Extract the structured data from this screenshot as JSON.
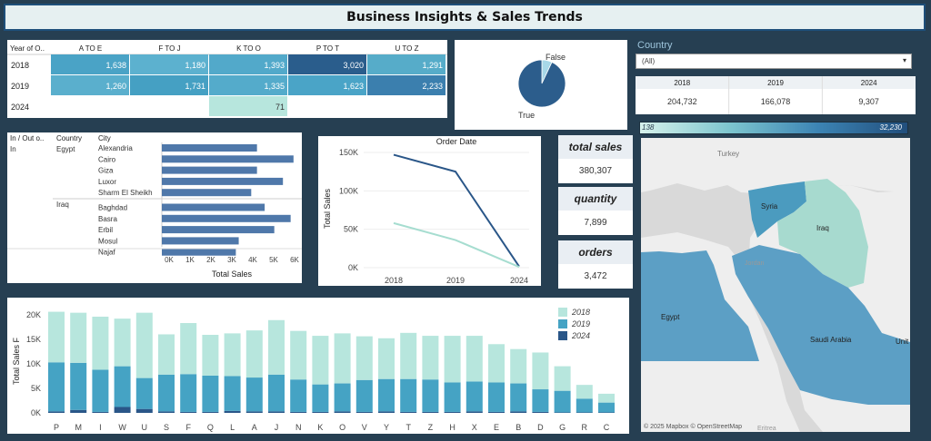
{
  "title": "Business Insights & Sales Trends",
  "heat": {
    "corner": "Year of O..",
    "cols": [
      "A TO E",
      "F TO J",
      "K TO O",
      "P TO T",
      "U TO Z"
    ],
    "rows": [
      {
        "year": "2018",
        "values": [
          "1,638",
          "1,180",
          "1,393",
          "3,020",
          "1,291"
        ],
        "colors": [
          "#4aa3c6",
          "#5cb1cf",
          "#52a9ca",
          "#2a5d8c",
          "#56acc9"
        ]
      },
      {
        "year": "2019",
        "values": [
          "1,260",
          "1,731",
          "1,335",
          "1,623",
          "2,233"
        ],
        "colors": [
          "#5aafcd",
          "#45a0c3",
          "#54abcb",
          "#4aa4c7",
          "#3b7fae"
        ]
      },
      {
        "year": "2024",
        "values": [
          "",
          "",
          "71",
          "",
          ""
        ],
        "colors": [
          "",
          "",
          "#b7e6dd",
          "",
          ""
        ]
      }
    ]
  },
  "pie": {
    "labels": [
      "False",
      "True"
    ],
    "values": [
      0.07,
      0.93
    ],
    "colors": [
      "#a7d8e8",
      "#2c5d8c"
    ]
  },
  "filter": {
    "label": "Country",
    "value": "(All)"
  },
  "year_totals": {
    "years": [
      "2018",
      "2019",
      "2024"
    ],
    "values": [
      "204,732",
      "166,078",
      "9,307"
    ]
  },
  "legend": {
    "min": "138",
    "max": "32,230"
  },
  "bars": {
    "headers": [
      "In / Out o..",
      "Country",
      "City"
    ],
    "group": "In",
    "countries": [
      "Egypt",
      "Iraq"
    ],
    "cities": [
      "Alexandria",
      "Cairo",
      "Giza",
      "Luxor",
      "Sharm El Sheikh",
      "Baghdad",
      "Basra",
      "Erbil",
      "Mosul",
      "Najaf"
    ],
    "values": [
      4950,
      6850,
      4950,
      6300,
      4650,
      5350,
      6700,
      5850,
      4000,
      3850
    ],
    "ticks": [
      "0K",
      "1K",
      "2K",
      "3K",
      "4K",
      "5K",
      "6K"
    ],
    "xlabel": "Total Sales",
    "max": 7000
  },
  "line": {
    "title": "Order Date",
    "ylabel": "Total Sales",
    "x": [
      "2018",
      "2019",
      "2024"
    ],
    "yticks": [
      "150K",
      "100K",
      "50K",
      "0K"
    ],
    "ymax": 150000,
    "series": [
      {
        "values": [
          147000,
          125000,
          1500
        ],
        "color": "#2a5688"
      },
      {
        "values": [
          58000,
          36000,
          1000
        ],
        "color": "#a6ddd0"
      }
    ]
  },
  "kpis": [
    {
      "title": "total sales",
      "value": "380,307"
    },
    {
      "title": "quantity",
      "value": "7,899"
    },
    {
      "title": "orders",
      "value": "3,472"
    }
  ],
  "map": {
    "labels": [
      "Turkey",
      "Syria",
      "Iraq",
      "Jordan",
      "Egypt",
      "Saudi Arabia",
      "Unit",
      "Eritrea"
    ],
    "attribution": "© 2025 Mapbox © OpenStreetMap"
  },
  "stack": {
    "ylabel": "Total Sales F",
    "yticks": [
      "20K",
      "15K",
      "10K",
      "5K",
      "0K"
    ],
    "ymax": 22000,
    "categories": [
      "P",
      "M",
      "I",
      "W",
      "U",
      "S",
      "F",
      "Q",
      "L",
      "A",
      "J",
      "N",
      "K",
      "O",
      "V",
      "Y",
      "T",
      "Z",
      "H",
      "X",
      "E",
      "B",
      "D",
      "G",
      "R",
      "C"
    ],
    "s2018": [
      10300,
      10200,
      10800,
      9700,
      13300,
      8200,
      10400,
      8300,
      8700,
      9600,
      11100,
      9900,
      9900,
      10200,
      8900,
      8300,
      9400,
      8900,
      9500,
      9300,
      7800,
      7000,
      7500,
      5000,
      2800,
      1800
    ],
    "s2019": [
      10000,
      9600,
      8600,
      8300,
      6300,
      7500,
      7700,
      7400,
      7100,
      6900,
      7500,
      6600,
      5600,
      5700,
      6500,
      6600,
      6700,
      6600,
      6000,
      6100,
      6000,
      5700,
      4600,
      4400,
      2800,
      2000
    ],
    "s2024": [
      300,
      600,
      200,
      1200,
      800,
      300,
      200,
      200,
      400,
      300,
      300,
      200,
      200,
      300,
      200,
      300,
      200,
      200,
      200,
      300,
      200,
      300,
      200,
      100,
      100,
      100
    ],
    "legend": [
      "2018",
      "2019",
      "2024"
    ],
    "colors": [
      "#b7e6dd",
      "#45a3c4",
      "#2a5688"
    ]
  }
}
